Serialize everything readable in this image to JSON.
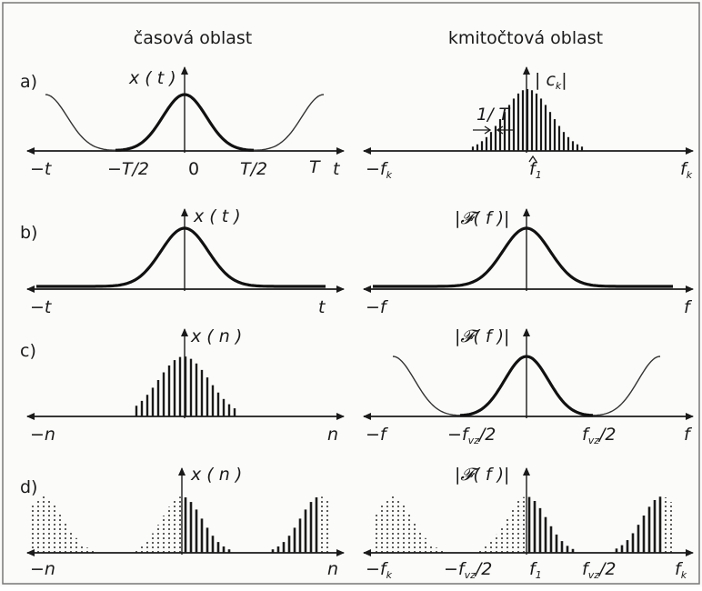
{
  "headers": {
    "time_domain": "časová oblast",
    "freq_domain": "kmitočtová oblast"
  },
  "rows": [
    {
      "id": "a",
      "row_label": "a)",
      "left": {
        "ylabel": "x ( t )",
        "ticks": [
          "−t",
          "−T/2",
          "0",
          "T/2",
          "T",
          "t"
        ]
      },
      "right": {
        "ylabel": "| c",
        "ylabel_sub": "k",
        "ylabel_end": "|",
        "ticks": [
          "−f",
          "f",
          "f"
        ],
        "tick_subs": [
          "k",
          "1",
          "k"
        ],
        "annotation": "1/ T"
      }
    },
    {
      "id": "b",
      "row_label": "b)",
      "left": {
        "ylabel": "x ( t )",
        "ticks": [
          "−t",
          "t"
        ]
      },
      "right": {
        "ylabel": "|𝓕( f )|",
        "ticks": [
          "−f",
          "f"
        ]
      }
    },
    {
      "id": "c",
      "row_label": "c)",
      "left": {
        "ylabel": "x ( n )",
        "ticks": [
          "−n",
          "n"
        ]
      },
      "right": {
        "ylabel": "|𝓕( f )|",
        "ticks": [
          "−f",
          "−f",
          "/2",
          "f",
          "/2",
          "f"
        ],
        "tick_subs": [
          "vz",
          "vz"
        ]
      }
    },
    {
      "id": "d",
      "row_label": "d)",
      "left": {
        "ylabel": "x ( n )",
        "ticks": [
          "−n",
          "n"
        ]
      },
      "right": {
        "ylabel": "|𝓕( f )|",
        "ticks": [
          "−f",
          "−f",
          "/2",
          "f",
          "f",
          "/2",
          "f"
        ],
        "tick_subs": [
          "k",
          "vz",
          "1",
          "vz",
          "k"
        ]
      }
    }
  ]
}
